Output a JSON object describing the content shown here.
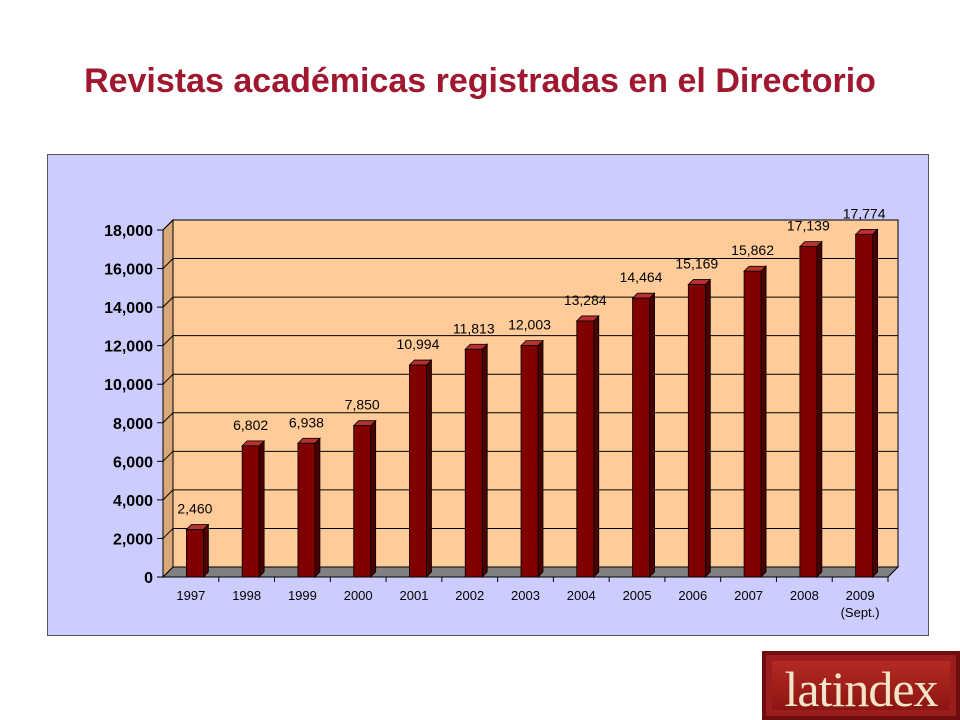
{
  "title": "Revistas académicas registradas en el Directorio",
  "logo_text": "latindex",
  "colors": {
    "title": "#a01830",
    "bar": "#800000",
    "plot_background": "#ffcc99",
    "panel_background": "#ccccff",
    "floor": "#808080"
  },
  "chart_data": {
    "type": "bar",
    "categories": [
      "1997",
      "1998",
      "1999",
      "2000",
      "2001",
      "2002",
      "2003",
      "2004",
      "2005",
      "2006",
      "2007",
      "2008",
      "2009"
    ],
    "category_sublabels": {
      "2009": "(Sept.)"
    },
    "values": [
      2460,
      6802,
      6938,
      7850,
      10994,
      11813,
      12003,
      13284,
      14464,
      15169,
      15862,
      17139,
      17774
    ],
    "data_labels": [
      "2,460",
      "6,802",
      "6,938",
      "7,850",
      "10,994",
      "11,813",
      "12,003",
      "13,284",
      "14,464",
      "15,169",
      "15,862",
      "17,139",
      "17,774"
    ],
    "y_ticks": [
      "0",
      "2,000",
      "4,000",
      "6,000",
      "8,000",
      "10,000",
      "12,000",
      "14,000",
      "16,000",
      "18,000"
    ],
    "ylim": [
      0,
      18000
    ],
    "title": "",
    "xlabel": "",
    "ylabel": "",
    "grid": true,
    "legend": false,
    "style": "3d-column"
  }
}
